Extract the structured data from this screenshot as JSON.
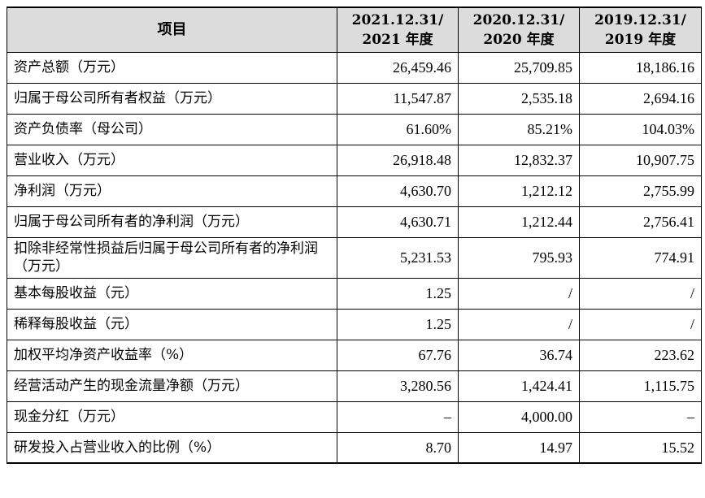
{
  "table": {
    "headers": {
      "item": "项目",
      "col1": [
        "2021.12.31/",
        "2021 年度"
      ],
      "col2": [
        "2020.12.31/",
        "2020 年度"
      ],
      "col3": [
        "2019.12.31/",
        "2019 年度"
      ]
    },
    "rows": [
      {
        "label": "资产总额（万元）",
        "v2021": "26,459.46",
        "v2020": "25,709.85",
        "v2019": "18,186.16"
      },
      {
        "label": "归属于母公司所有者权益（万元）",
        "v2021": "11,547.87",
        "v2020": "2,535.18",
        "v2019": "2,694.16"
      },
      {
        "label": "资产负债率（母公司）",
        "v2021": "61.60%",
        "v2020": "85.21%",
        "v2019": "104.03%"
      },
      {
        "label": "营业收入（万元）",
        "v2021": "26,918.48",
        "v2020": "12,832.37",
        "v2019": "10,907.75"
      },
      {
        "label": "净利润（万元）",
        "v2021": "4,630.70",
        "v2020": "1,212.12",
        "v2019": "2,755.99"
      },
      {
        "label": "归属于母公司所有者的净利润（万元）",
        "v2021": "4,630.71",
        "v2020": "1,212.44",
        "v2019": "2,756.41"
      },
      {
        "label": "扣除非经常性损益后归属于母公司所有者的净利润（万元）",
        "v2021": "5,231.53",
        "v2020": "795.93",
        "v2019": "774.91"
      },
      {
        "label": "基本每股收益（元）",
        "v2021": "1.25",
        "v2020": "/",
        "v2019": "/"
      },
      {
        "label": "稀释每股收益（元）",
        "v2021": "1.25",
        "v2020": "/",
        "v2019": "/"
      },
      {
        "label": "加权平均净资产收益率（%）",
        "v2021": "67.76",
        "v2020": "36.74",
        "v2019": "223.62"
      },
      {
        "label": "经营活动产生的现金流量净额（万元）",
        "v2021": "3,280.56",
        "v2020": "1,424.41",
        "v2019": "1,115.75"
      },
      {
        "label": "现金分红（万元）",
        "v2021": "–",
        "v2020": "4,000.00",
        "v2019": "–"
      },
      {
        "label": "研发投入占营业收入的比例（%）",
        "v2021": "8.70",
        "v2020": "14.97",
        "v2019": "15.52"
      }
    ]
  }
}
